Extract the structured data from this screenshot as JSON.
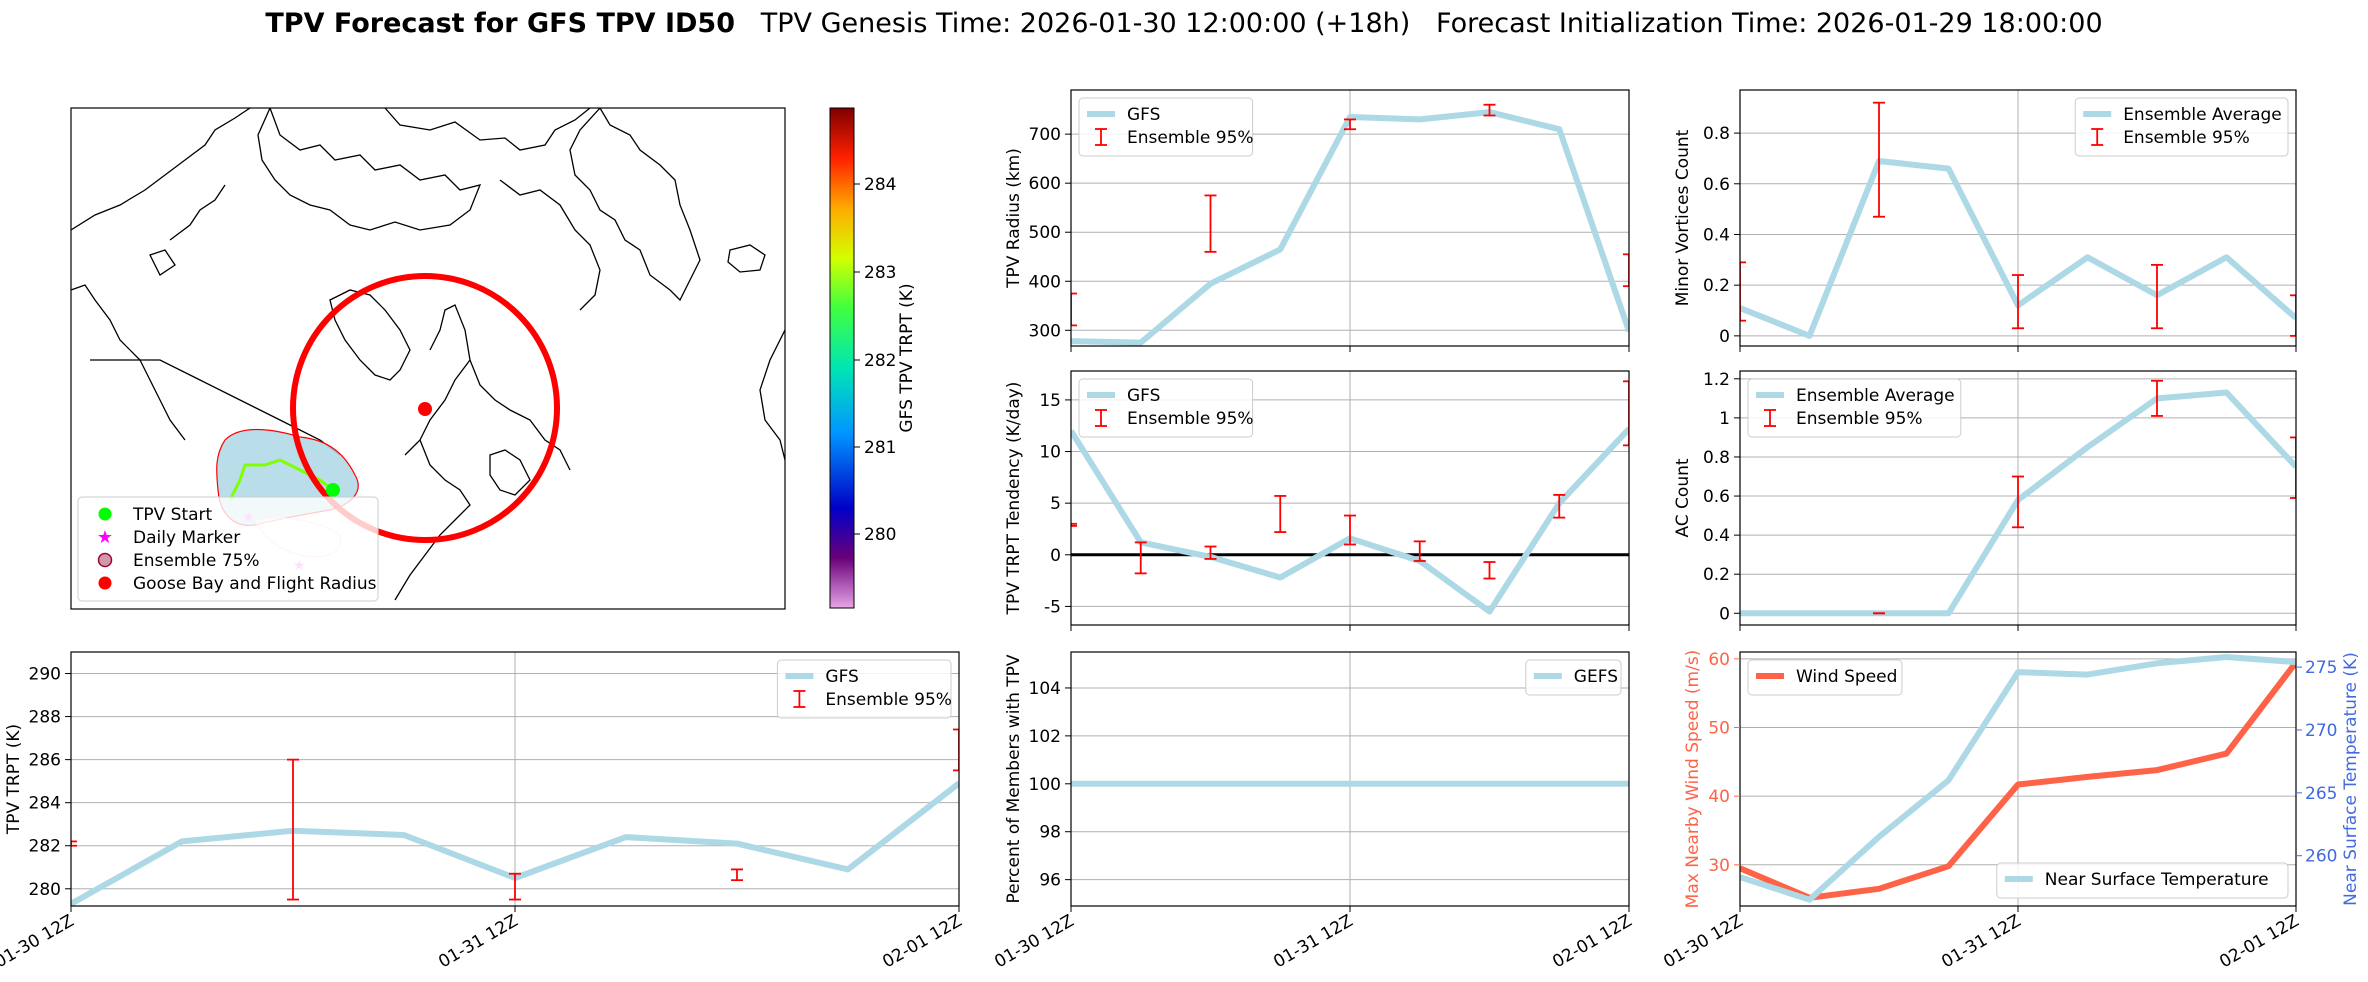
{
  "header": {
    "title_bold": "TPV Forecast for GFS TPV ID50",
    "title_rest": "TPV Genesis Time: 2026-01-30 12:00:00 (+18h)   Forecast Initialization Time: 2026-01-29 18:00:00"
  },
  "time_ticks": [
    "01-30 12Z",
    "01-31 12Z",
    "02-01 12Z"
  ],
  "colors": {
    "gfs_line": "#add8e6",
    "ensemble_bar": "#ff0000",
    "wind_line": "#ff6347",
    "wind_axis": "#ff6347",
    "temp_axis": "#4169e1",
    "map_marker": "#ff0000",
    "tpv_start": "#00ff00",
    "daily_marker": "#ff00ff"
  },
  "map": {
    "colorbar_label": "GFS TPV TRPT (K)",
    "colorbar_ticks": [
      "284",
      "283",
      "282",
      "281",
      "280"
    ],
    "legend": [
      {
        "label": "TPV Start",
        "icon": "green-dot-icon"
      },
      {
        "label": "Daily Marker",
        "icon": "magenta-star-icon"
      },
      {
        "label": "Ensemble 75%",
        "icon": "ensemble-patch-icon"
      },
      {
        "label": "Goose Bay and Flight Radius",
        "icon": "red-dot-icon"
      }
    ]
  },
  "chart_data": [
    {
      "id": "radius",
      "type": "line",
      "ylabel": "TPV Radius (km)",
      "ylim": [
        268,
        790
      ],
      "yticks": [
        300,
        400,
        500,
        600,
        700
      ],
      "grid": true,
      "legend_position": "top-left",
      "x": [
        0,
        0.25,
        0.5,
        0.75,
        1.0,
        1.25,
        1.5,
        1.75,
        2.0
      ],
      "series": [
        {
          "name": "GFS",
          "values": [
            278,
            275,
            395,
            465,
            735,
            730,
            745,
            710,
            298
          ]
        }
      ],
      "error_bars": {
        "name": "Ensemble 95%",
        "x": [
          0,
          0.5,
          1.0,
          1.5,
          2.0
        ],
        "low": [
          310,
          460,
          710,
          738,
          390
        ],
        "high": [
          375,
          575,
          730,
          760,
          455
        ]
      }
    },
    {
      "id": "minor",
      "type": "line",
      "ylabel": "Minor Vortices Count",
      "ylim": [
        -0.04,
        0.97
      ],
      "yticks": [
        0.0,
        0.2,
        0.4,
        0.6,
        0.8
      ],
      "grid": true,
      "legend_position": "top-right",
      "x": [
        0,
        0.25,
        0.5,
        0.75,
        1.0,
        1.25,
        1.5,
        1.75,
        2.0
      ],
      "series": [
        {
          "name": "Ensemble Average",
          "values": [
            0.11,
            0.0,
            0.69,
            0.66,
            0.12,
            0.31,
            0.16,
            0.31,
            0.07
          ]
        }
      ],
      "error_bars": {
        "name": "Ensemble 95%",
        "x": [
          0,
          0.5,
          1.0,
          1.5,
          2.0
        ],
        "low": [
          0.06,
          0.47,
          0.03,
          0.03,
          0.0
        ],
        "high": [
          0.29,
          0.92,
          0.24,
          0.28,
          0.16
        ]
      }
    },
    {
      "id": "tendency",
      "type": "line",
      "ylabel": "TPV TRPT Tendency (K/day)",
      "ylim": [
        -6.8,
        17.8
      ],
      "yticks": [
        -5,
        0,
        5,
        10,
        15
      ],
      "grid": true,
      "zero_line": true,
      "legend_position": "top-left",
      "x": [
        0,
        0.25,
        0.5,
        0.75,
        1.0,
        1.25,
        1.5,
        1.75,
        2.0
      ],
      "series": [
        {
          "name": "GFS",
          "values": [
            12.0,
            1.2,
            -0.2,
            -2.2,
            1.6,
            -0.6,
            -5.5,
            5.0,
            12.2
          ]
        }
      ],
      "error_bars": {
        "name": "Ensemble 95%",
        "x": [
          0,
          0.25,
          0.5,
          0.75,
          1.0,
          1.25,
          1.5,
          1.75,
          2.0
        ],
        "low": [
          2.8,
          -1.8,
          -0.4,
          2.2,
          1.0,
          -0.6,
          -2.3,
          3.6,
          10.6
        ],
        "high": [
          3.0,
          1.2,
          0.8,
          5.7,
          3.8,
          1.3,
          -0.7,
          5.8,
          16.8
        ]
      }
    },
    {
      "id": "ac",
      "type": "line",
      "ylabel": "AC Count",
      "ylim": [
        -0.06,
        1.24
      ],
      "yticks": [
        0.0,
        0.2,
        0.4,
        0.6,
        0.8,
        1.0,
        1.2
      ],
      "grid": true,
      "legend_position": "top-left",
      "x": [
        0,
        0.25,
        0.5,
        0.75,
        1.0,
        1.25,
        1.5,
        1.75,
        2.0
      ],
      "series": [
        {
          "name": "Ensemble Average",
          "values": [
            0.0,
            0.0,
            0.0,
            0.0,
            0.58,
            0.85,
            1.1,
            1.13,
            0.75
          ]
        }
      ],
      "error_bars": {
        "name": "Ensemble 95%",
        "x": [
          0.5,
          1.0,
          1.5,
          2.0
        ],
        "low": [
          0.0,
          0.44,
          1.01,
          0.59
        ],
        "high": [
          0.0,
          0.7,
          1.19,
          0.9
        ]
      }
    },
    {
      "id": "trpt",
      "type": "line",
      "ylabel": "TPV TRPT (K)",
      "ylim": [
        279.2,
        291.0
      ],
      "yticks": [
        280,
        282,
        284,
        286,
        288,
        290
      ],
      "grid": true,
      "legend_position": "top-right",
      "x": [
        0,
        0.25,
        0.5,
        0.75,
        1.0,
        1.25,
        1.5,
        1.75,
        2.0
      ],
      "series": [
        {
          "name": "GFS",
          "values": [
            279.3,
            282.2,
            282.7,
            282.5,
            280.5,
            282.4,
            282.1,
            280.9,
            284.9
          ]
        }
      ],
      "error_bars": {
        "name": "Ensemble 95%",
        "x": [
          0,
          0.5,
          1.0,
          1.5,
          2.0
        ],
        "low": [
          282.0,
          279.5,
          279.5,
          280.4,
          285.5
        ],
        "high": [
          282.2,
          286.0,
          280.7,
          280.9,
          287.4
        ]
      }
    },
    {
      "id": "percent",
      "type": "line",
      "ylabel": "Percent of Members with TPV",
      "ylim": [
        94.9,
        105.5
      ],
      "yticks": [
        96,
        98,
        100,
        102,
        104
      ],
      "grid": true,
      "legend_position": "top-right",
      "x": [
        0,
        0.25,
        0.5,
        0.75,
        1.0,
        1.25,
        1.5,
        1.75,
        2.0
      ],
      "series": [
        {
          "name": "GEFS",
          "values": [
            100,
            100,
            100,
            100,
            100,
            100,
            100,
            100,
            100
          ]
        }
      ]
    },
    {
      "id": "wind",
      "type": "line",
      "ylabel": "Max Nearby Wind Speed (m/s)",
      "y2label": "Near Surface Temperature (K)",
      "ylim": [
        24,
        61
      ],
      "yticks": [
        30,
        40,
        50,
        60
      ],
      "y2lim": [
        256.0,
        276.2
      ],
      "y2ticks": [
        260,
        265,
        270,
        275
      ],
      "grid": true,
      "x": [
        0,
        0.25,
        0.5,
        0.75,
        1.0,
        1.25,
        1.5,
        1.75,
        2.0
      ],
      "series": [
        {
          "name": "Wind Speed",
          "axis": "left",
          "values": [
            29.5,
            25.2,
            26.5,
            29.8,
            41.7,
            42.8,
            43.8,
            46.2,
            59.5
          ],
          "legend_position": "top-left"
        },
        {
          "name": "Near Surface Temperature",
          "axis": "right",
          "values": [
            258.3,
            256.5,
            261.5,
            266.0,
            274.6,
            274.4,
            275.3,
            275.8,
            275.4
          ],
          "legend_position": "bottom-right"
        }
      ]
    }
  ]
}
